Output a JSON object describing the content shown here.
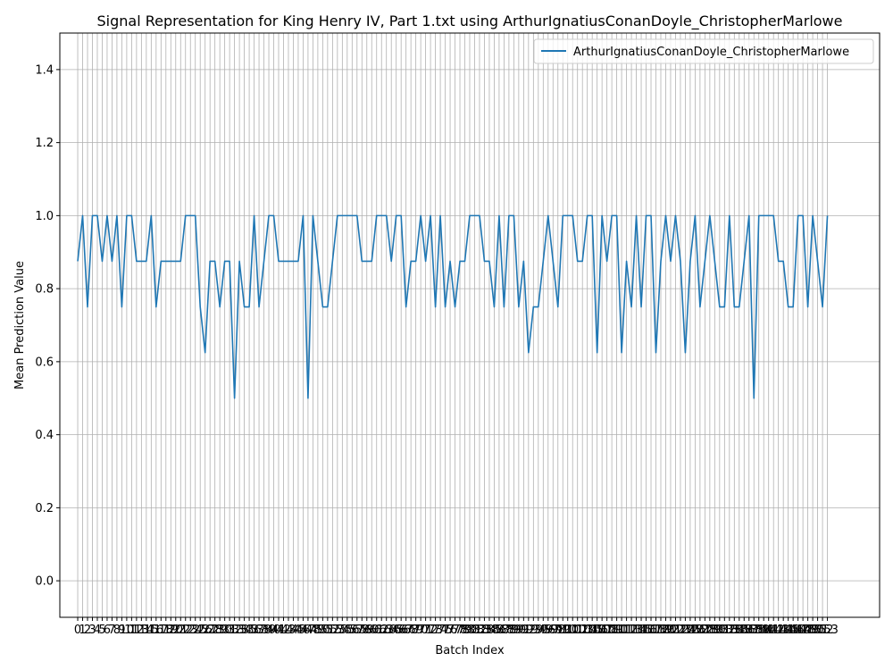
{
  "chart_data": {
    "type": "line",
    "title": "Signal Representation for King Henry IV, Part 1.txt using ArthurIgnatiusConanDoyle_ChristopherMarlowe",
    "xlabel": "Batch Index",
    "ylabel": "Mean Prediction Value",
    "ylim": [
      -0.1,
      1.5
    ],
    "xlim": [
      -3.65,
      163.65
    ],
    "grid": true,
    "legend": "top-right",
    "x_ticks": {
      "start": 0,
      "end": 153,
      "step": 1
    },
    "y_ticks": [
      0.0,
      0.2,
      0.4,
      0.6,
      0.8,
      1.0,
      1.2,
      1.4
    ],
    "series": [
      {
        "name": "ArthurIgnatiusConanDoyle_ChristopherMarlowe",
        "color": "#1f77b4",
        "values": [
          0.875,
          1.0,
          0.75,
          1.0,
          1.0,
          0.875,
          1.0,
          0.875,
          1.0,
          0.75,
          1.0,
          1.0,
          0.875,
          0.875,
          0.875,
          1.0,
          0.75,
          0.875,
          0.875,
          0.875,
          0.875,
          0.875,
          1.0,
          1.0,
          1.0,
          0.75,
          0.625,
          0.875,
          0.875,
          0.75,
          0.875,
          0.875,
          0.5,
          0.875,
          0.75,
          0.75,
          1.0,
          0.75,
          0.875,
          1.0,
          1.0,
          0.875,
          0.875,
          0.875,
          0.875,
          0.875,
          1.0,
          0.5,
          1.0,
          0.875,
          0.75,
          0.75,
          0.875,
          1.0,
          1.0,
          1.0,
          1.0,
          1.0,
          0.875,
          0.875,
          0.875,
          1.0,
          1.0,
          1.0,
          0.875,
          1.0,
          1.0,
          0.75,
          0.875,
          0.875,
          1.0,
          0.875,
          1.0,
          0.75,
          1.0,
          0.75,
          0.875,
          0.75,
          0.875,
          0.875,
          1.0,
          1.0,
          1.0,
          0.875,
          0.875,
          0.75,
          1.0,
          0.75,
          1.0,
          1.0,
          0.75,
          0.875,
          0.625,
          0.75,
          0.75,
          0.875,
          1.0,
          0.875,
          0.75,
          1.0,
          1.0,
          1.0,
          0.875,
          0.875,
          1.0,
          1.0,
          0.625,
          1.0,
          0.875,
          1.0,
          1.0,
          0.625,
          0.875,
          0.75,
          1.0,
          0.75,
          1.0,
          1.0,
          0.625,
          0.875,
          1.0,
          0.875,
          1.0,
          0.875,
          0.625,
          0.875,
          1.0,
          0.75,
          0.875,
          1.0,
          0.875,
          0.75,
          0.75,
          1.0,
          0.75,
          0.75,
          0.875,
          1.0,
          0.5,
          1.0,
          1.0,
          1.0,
          1.0,
          0.875,
          0.875,
          0.75,
          0.75,
          1.0,
          1.0,
          0.75,
          1.0,
          0.875,
          0.75,
          1.0
        ]
      }
    ]
  }
}
